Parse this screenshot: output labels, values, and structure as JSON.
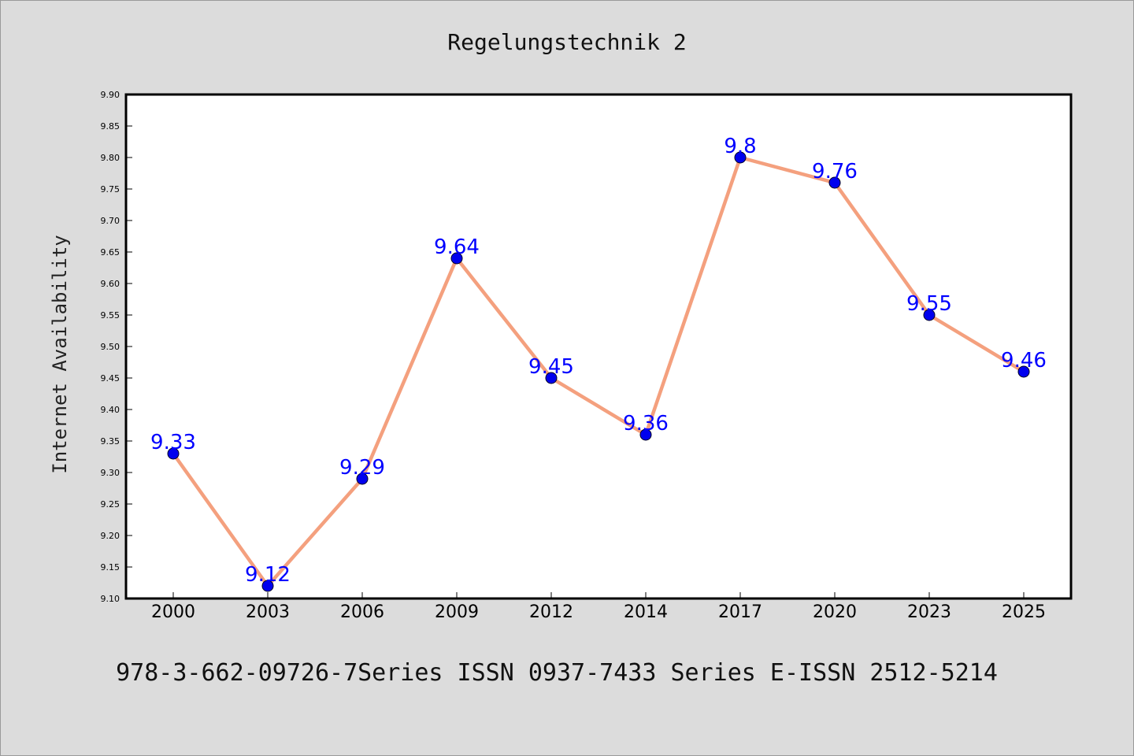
{
  "colors": {
    "background": "#dcdcdc",
    "plot_bg": "#ffffff",
    "line": "#f4a07e",
    "marker": "#0000ee",
    "data_label": "#0000ff"
  },
  "footer": "978-3-662-09726-7Series ISSN 0937-7433 Series E-ISSN 2512-5214",
  "chart_data": {
    "type": "line",
    "title": "Regelungstechnik 2",
    "xlabel": "",
    "ylabel": "Internet Availability",
    "categories": [
      "2000",
      "2003",
      "2006",
      "2009",
      "2012",
      "2014",
      "2017",
      "2020",
      "2023",
      "2025"
    ],
    "series": [
      {
        "values": [
          9.33,
          9.12,
          9.29,
          9.64,
          9.45,
          9.36,
          9.8,
          9.76,
          9.55,
          9.46
        ]
      }
    ],
    "data_labels": [
      "9.33",
      "9.12",
      "9.29",
      "9.64",
      "9.45",
      "9.36",
      "9.8",
      "9.76",
      "9.55",
      "9.46"
    ],
    "ylim": [
      9.1,
      9.9
    ],
    "ytick_step": 0.05,
    "grid": false,
    "legend": "none"
  }
}
